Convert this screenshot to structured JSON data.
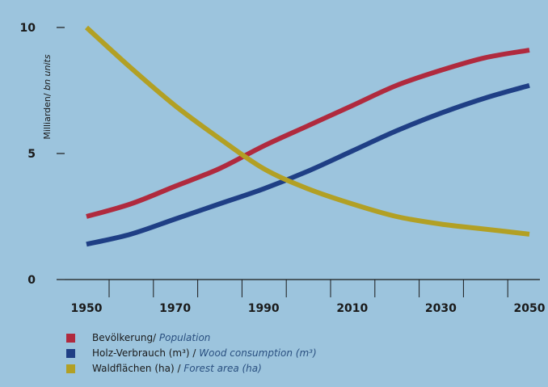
{
  "colors": {
    "background": "#9cc4dd",
    "axis": "#1a1a1a",
    "population": "#b02a3e",
    "wood_consumption": "#1f3f85",
    "forest_area": "#b2a024"
  },
  "chart_data": {
    "type": "line",
    "ylabel_de": "Milliarden/ ",
    "ylabel_en": "bn units",
    "x_ticks": [
      "1950",
      "1970",
      "1990",
      "2010",
      "2030",
      "2050"
    ],
    "y_ticks": [
      "0",
      "5",
      "10"
    ],
    "xlim": [
      1940,
      2054
    ],
    "ylim": [
      0,
      10
    ],
    "x": [
      1950,
      1960,
      1970,
      1980,
      1990,
      2000,
      2010,
      2020,
      2030,
      2040,
      2050
    ],
    "series": [
      {
        "name_de": "Bevölkerung/ ",
        "name_en": "Population",
        "color_key": "population",
        "values": [
          2.5,
          3.0,
          3.7,
          4.4,
          5.3,
          6.1,
          6.9,
          7.7,
          8.3,
          8.8,
          9.1
        ]
      },
      {
        "name_de": "Holz-Verbrauch (m³) / ",
        "name_en": "Wood consumption (m³)",
        "color_key": "wood_consumption",
        "values": [
          1.4,
          1.8,
          2.4,
          3.0,
          3.6,
          4.3,
          5.1,
          5.9,
          6.6,
          7.2,
          7.7
        ]
      },
      {
        "name_de": "Waldflächen (ha) / ",
        "name_en": "Forest area (ha)",
        "color_key": "forest_area",
        "values": [
          10.0,
          8.4,
          6.9,
          5.6,
          4.4,
          3.6,
          3.0,
          2.5,
          2.2,
          2.0,
          1.8
        ]
      }
    ]
  }
}
